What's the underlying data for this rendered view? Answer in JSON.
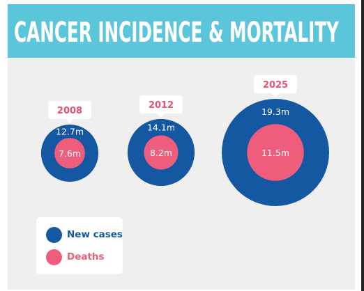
{
  "title": "CANCER INCIDENCE & MORTALITY",
  "colors": {
    "header": "#5bc6db",
    "panel": "#efefef",
    "new_cases": "#1558a2",
    "deaths": "#ef5d7c",
    "year_text": "#e8516f",
    "title_text": "#ffffff"
  },
  "legend": {
    "new_cases_label": "New cases",
    "deaths_label": "Deaths"
  },
  "chart_data": {
    "type": "bubble",
    "title": "CANCER INCIDENCE & MORTALITY",
    "categories": [
      "2008",
      "2012",
      "2025"
    ],
    "series": [
      {
        "name": "New cases",
        "values": [
          12.7,
          14.1,
          19.3
        ],
        "labels": [
          "12.7m",
          "14.1m",
          "19.3m"
        ]
      },
      {
        "name": "Deaths",
        "values": [
          7.6,
          8.2,
          11.5
        ],
        "labels": [
          "7.6m",
          "8.2m",
          "11.5m"
        ]
      }
    ],
    "unit": "m",
    "legend_position": "bottom-left"
  }
}
